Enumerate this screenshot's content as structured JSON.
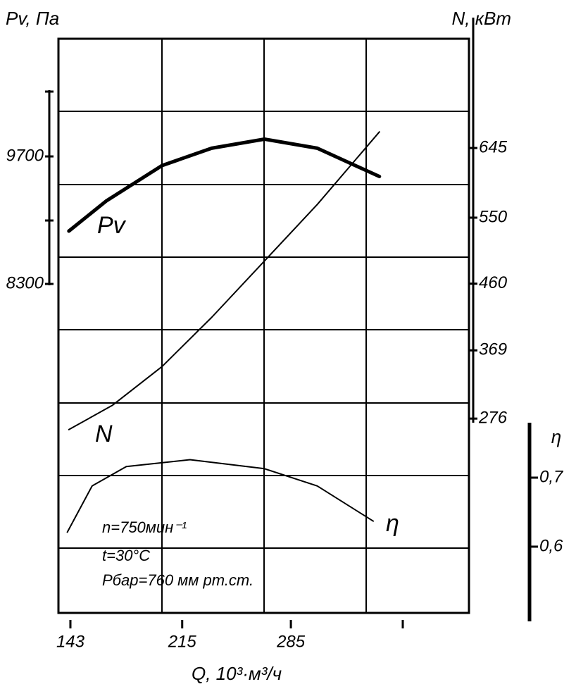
{
  "chart_data": {
    "type": "line",
    "x_label": "Q, 10³·м³/ч",
    "y_label": "Pv, Па",
    "y2_label": "N, кВт",
    "y3_label": "η",
    "annotations": [
      "n=750мин⁻¹",
      "t=30°C",
      "Рбар=760 мм рт.ст."
    ],
    "xlim": [
      135.3,
      399.7
    ],
    "xticks": [
      143,
      215,
      285
    ],
    "ylim": [
      4688,
      10992
    ],
    "yticks": [
      8300,
      9700
    ],
    "y2lim": [
      11,
      794
    ],
    "y2ticks": [
      276,
      369,
      460,
      550,
      645
    ],
    "y3lim": [
      0.504,
      1.336
    ],
    "y3ticks": [
      {
        "value": 0.6,
        "label": "0,6"
      },
      {
        "value": 0.7,
        "label": "0,7"
      }
    ],
    "series": [
      {
        "name": "Pv",
        "color": "#000000",
        "width": 5,
        "x": [
          142,
          166,
          202,
          234,
          268,
          302,
          342
        ],
        "values": [
          8880,
          9210,
          9600,
          9790,
          9890,
          9790,
          9480
        ]
      },
      {
        "name": "N",
        "color": "#000000",
        "width": 2,
        "axis": "y2",
        "x": [
          142,
          170,
          202,
          234,
          268,
          302,
          342
        ],
        "values": [
          261,
          294,
          347,
          414,
          491,
          568,
          667
        ]
      },
      {
        "name": "η",
        "color": "#000000",
        "width": 2,
        "axis": "y3",
        "x": [
          141,
          157,
          179,
          220,
          268,
          302,
          338
        ],
        "values": [
          0.621,
          0.688,
          0.716,
          0.726,
          0.713,
          0.688,
          0.637
        ]
      }
    ]
  }
}
